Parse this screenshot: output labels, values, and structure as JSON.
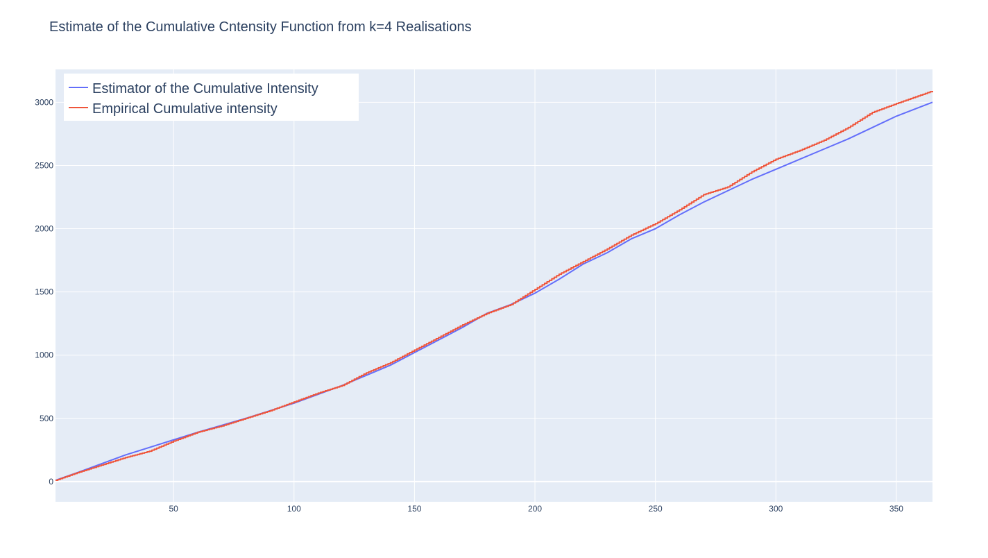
{
  "chart_data": {
    "type": "line",
    "title": "Estimate of the Cumulative Cntensity Function from k=4 Realisations",
    "xlabel": "",
    "ylabel": "",
    "xlim": [
      1,
      365
    ],
    "ylim": [
      -160,
      3260
    ],
    "x_ticks": [
      50,
      100,
      150,
      200,
      250,
      300,
      350
    ],
    "y_ticks": [
      0,
      500,
      1000,
      1500,
      2000,
      2500,
      3000
    ],
    "grid": true,
    "legend_position": "top-left",
    "background_color": "#e5ecf6",
    "series": [
      {
        "name": "Estimator of the Cumulative Intensity",
        "color": "#636efa",
        "style": "line",
        "x": [
          1,
          10,
          20,
          30,
          40,
          50,
          60,
          70,
          80,
          90,
          100,
          110,
          120,
          130,
          140,
          150,
          160,
          170,
          180,
          190,
          200,
          210,
          220,
          230,
          240,
          250,
          260,
          270,
          280,
          290,
          300,
          310,
          320,
          330,
          340,
          350,
          365
        ],
        "y": [
          10,
          70,
          140,
          210,
          270,
          330,
          390,
          445,
          500,
          560,
          620,
          690,
          760,
          840,
          920,
          1020,
          1120,
          1220,
          1330,
          1400,
          1490,
          1600,
          1720,
          1810,
          1920,
          2000,
          2110,
          2210,
          2300,
          2390,
          2470,
          2550,
          2630,
          2710,
          2800,
          2890,
          3000
        ]
      },
      {
        "name": "Empirical Cumulative intensity",
        "color": "#ef553b",
        "style": "step",
        "x": [
          1,
          10,
          20,
          30,
          40,
          50,
          60,
          70,
          80,
          90,
          100,
          110,
          120,
          130,
          140,
          150,
          160,
          170,
          180,
          190,
          200,
          210,
          220,
          230,
          240,
          250,
          260,
          270,
          280,
          290,
          300,
          310,
          320,
          330,
          340,
          350,
          365
        ],
        "y": [
          10,
          70,
          130,
          190,
          240,
          320,
          390,
          440,
          500,
          560,
          630,
          700,
          760,
          860,
          940,
          1040,
          1140,
          1240,
          1330,
          1400,
          1520,
          1640,
          1740,
          1840,
          1950,
          2040,
          2150,
          2270,
          2330,
          2450,
          2550,
          2620,
          2700,
          2800,
          2920,
          2990,
          3090
        ]
      }
    ]
  }
}
